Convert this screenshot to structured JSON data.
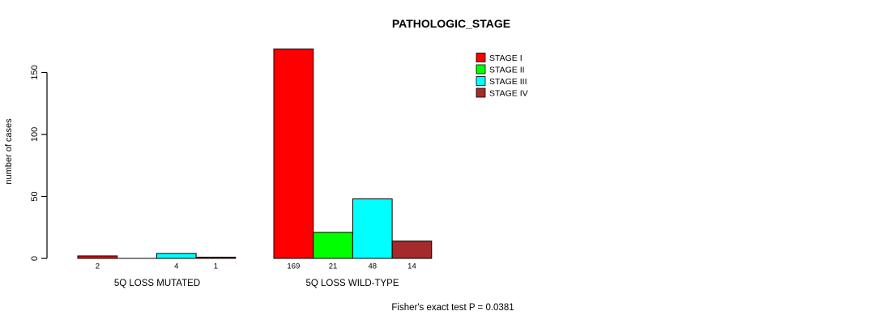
{
  "chart_data": {
    "type": "bar",
    "title": "PATHOLOGIC_STAGE",
    "ylabel": "number of cases",
    "xlabel": "",
    "yticks": [
      "0",
      "50",
      "100",
      "150"
    ],
    "ylim": [
      0,
      175
    ],
    "grid": false,
    "legend_position": "top-right",
    "groups": [
      "5Q LOSS MUTATED",
      "5Q LOSS WILD-TYPE"
    ],
    "series": [
      {
        "name": "STAGE I",
        "color": "#FF0000",
        "values": [
          2,
          169
        ]
      },
      {
        "name": "STAGE II",
        "color": "#00FF00",
        "values": [
          0,
          21
        ]
      },
      {
        "name": "STAGE III",
        "color": "#00FFFF",
        "values": [
          4,
          48
        ]
      },
      {
        "name": "STAGE IV",
        "color": "#A52A2A",
        "values": [
          1,
          14
        ]
      }
    ],
    "bar_value_labels": [
      [
        "2",
        "",
        "4",
        "1"
      ],
      [
        "169",
        "21",
        "48",
        "14"
      ]
    ],
    "annotation": "Fisher's exact test P = 0.0381",
    "colors": {
      "axis": "#000000",
      "background": "#FFFFFF",
      "bar_border": "#000000"
    }
  }
}
